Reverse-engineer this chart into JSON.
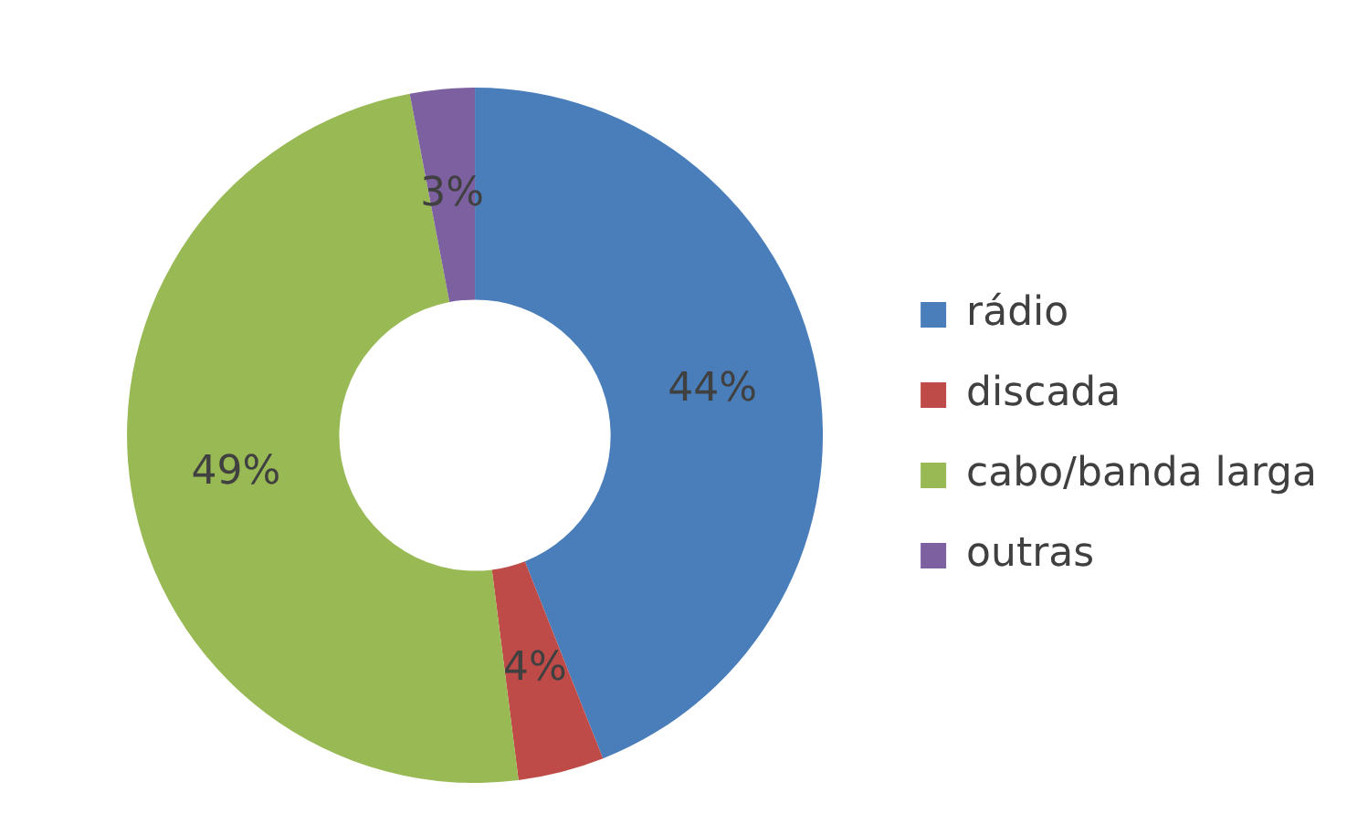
{
  "chart_data": {
    "type": "donut",
    "categories": [
      "rádio",
      "discada",
      "cabo/banda larga",
      "outras"
    ],
    "values": [
      44,
      4,
      49,
      3
    ],
    "colors": [
      "#4a7ebb",
      "#be4b48",
      "#98b954",
      "#7d60a0"
    ],
    "value_labels": [
      "44%",
      "4%",
      "49%",
      "3%"
    ],
    "legend": "right"
  }
}
